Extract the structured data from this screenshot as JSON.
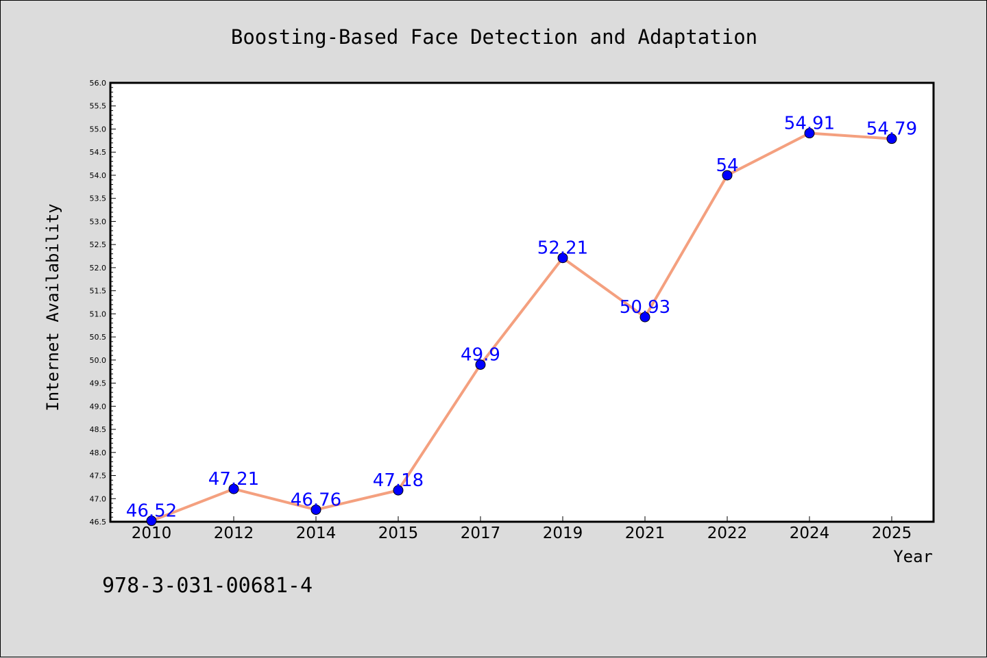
{
  "colors": {
    "background": "#dcdcdc",
    "plot_background": "#ffffff",
    "line": "#f4a07f",
    "marker": "#0000ff",
    "label": "#0000ff"
  },
  "footer_note": "978-3-031-00681-4",
  "chart_data": {
    "type": "line",
    "title": "Boosting-Based Face Detection and Adaptation",
    "xlabel": "Year",
    "ylabel": "Internet Availability",
    "categories": [
      "2010",
      "2012",
      "2014",
      "2015",
      "2017",
      "2019",
      "2021",
      "2022",
      "2024",
      "2025"
    ],
    "series": [
      {
        "values": [
          46.52,
          47.21,
          46.76,
          47.18,
          49.9,
          52.21,
          50.93,
          54,
          54.91,
          54.79
        ],
        "data_labels": [
          "46.52",
          "47.21",
          "46.76",
          "47.18",
          "49.9",
          "52.21",
          "50.93",
          "54",
          "54.91",
          "54.79"
        ]
      }
    ],
    "ylim": [
      46.5,
      56.0
    ],
    "ytick_step": 0.5,
    "yticks": [
      "46.5",
      "47.0",
      "47.5",
      "48.0",
      "48.5",
      "49.0",
      "49.5",
      "50.0",
      "50.5",
      "51.0",
      "51.5",
      "52.0",
      "52.5",
      "53.0",
      "53.5",
      "54.0",
      "54.5",
      "55.0",
      "55.5",
      "56.0"
    ],
    "grid": false,
    "legend": "none"
  }
}
